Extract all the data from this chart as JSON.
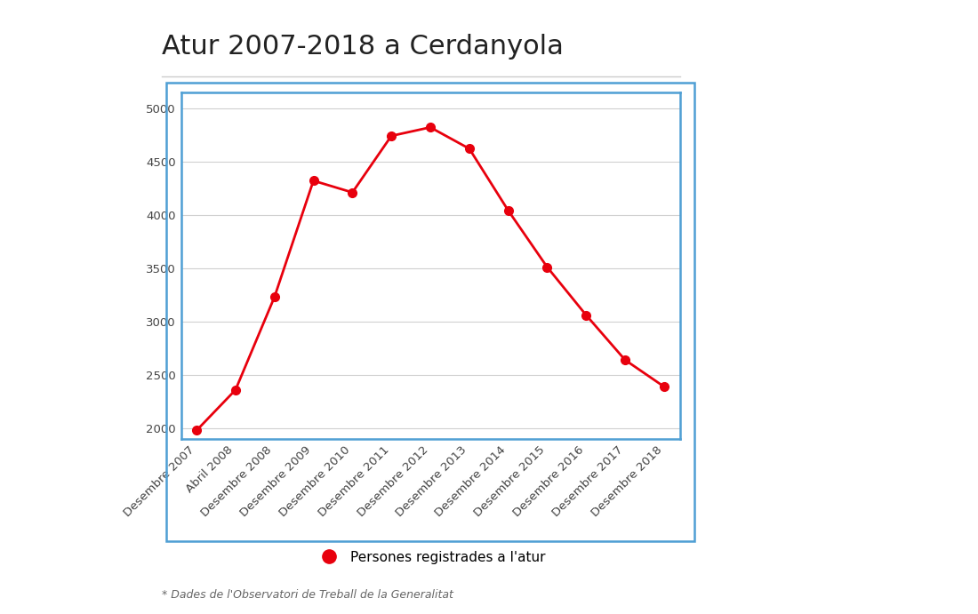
{
  "title": "Atur 2007-2018 a Cerdanyola",
  "footnote": "* Dades de l'Observatori de Treball de la Generalitat",
  "legend_label": "Persones registrades a l'atur",
  "categories": [
    "Desembre 2007",
    "Abril 2008",
    "Desembre 2008",
    "Desembre 2009",
    "Desembre 2010",
    "Desembre 2011",
    "Desembre 2012",
    "Desembre 2013",
    "Desembre 2014",
    "Desembre 2015",
    "Desembre 2016",
    "Desembre 2017",
    "Desembre 2018"
  ],
  "values": [
    1980,
    2360,
    3230,
    4320,
    4210,
    4740,
    4820,
    4620,
    4040,
    3510,
    3060,
    2640,
    2390
  ],
  "line_color": "#e8000d",
  "marker_color": "#e8000d",
  "marker_size": 7,
  "line_width": 2,
  "ylim": [
    1900,
    5150
  ],
  "yticks": [
    2000,
    2500,
    3000,
    3500,
    4000,
    4500,
    5000
  ],
  "background_color": "#ffffff",
  "plot_bg_color": "#ffffff",
  "grid_color": "#d0d0d0",
  "box_edge_color": "#4f9fd4",
  "title_color": "#222222",
  "tick_color": "#444444",
  "title_fontsize": 22,
  "tick_fontsize": 9.5,
  "legend_fontsize": 11,
  "footnote_fontsize": 9,
  "footnote_color": "#666666",
  "separator_color": "#cccccc"
}
